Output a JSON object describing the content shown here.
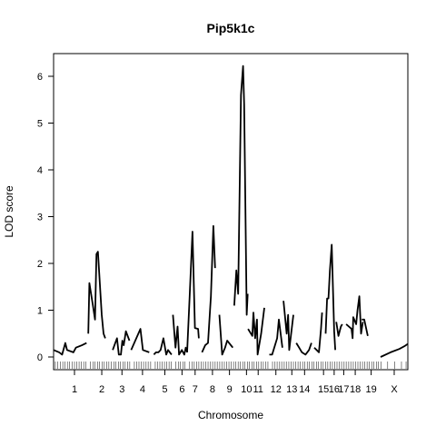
{
  "chart_data": {
    "type": "line",
    "title": "Pip5k1c",
    "xlabel": "Chromosome",
    "ylabel": "LOD score",
    "ylim": [
      -0.25,
      6.5
    ],
    "yticks": [
      0,
      1,
      2,
      3,
      4,
      5,
      6
    ],
    "xlim": [
      0,
      100
    ],
    "grid": false,
    "legend": "none",
    "line_color": "#000000",
    "chromosomes": [
      {
        "label": "1",
        "start": 0.0,
        "end": 11.8,
        "points": [
          [
            0.0,
            0.15
          ],
          [
            1.6,
            0.1
          ],
          [
            2.4,
            0.05
          ],
          [
            3.3,
            0.3
          ],
          [
            3.8,
            0.15
          ],
          [
            5.6,
            0.1
          ],
          [
            6.3,
            0.2
          ],
          [
            8.0,
            0.25
          ],
          [
            9.3,
            0.3
          ]
        ]
      },
      {
        "label": "2",
        "start": 9.8,
        "end": 17.4,
        "points": [
          [
            9.8,
            0.5
          ],
          [
            10.1,
            1.58
          ],
          [
            11.1,
            1.1
          ],
          [
            11.7,
            0.8
          ],
          [
            12.1,
            2.2
          ],
          [
            12.5,
            2.25
          ],
          [
            13.6,
            0.9
          ],
          [
            14.1,
            0.5
          ],
          [
            14.6,
            0.4
          ]
        ]
      },
      {
        "label": "3",
        "start": 16.7,
        "end": 21.9,
        "points": [
          [
            16.7,
            0.15
          ],
          [
            17.4,
            0.3
          ],
          [
            17.9,
            0.4
          ],
          [
            18.4,
            0.05
          ],
          [
            19.0,
            0.05
          ],
          [
            19.4,
            0.35
          ],
          [
            19.8,
            0.25
          ],
          [
            20.4,
            0.55
          ],
          [
            21.4,
            0.35
          ]
        ]
      },
      {
        "label": "4",
        "start": 21.9,
        "end": 28.3,
        "points": [
          [
            21.9,
            0.15
          ],
          [
            24.5,
            0.6
          ],
          [
            25.2,
            0.15
          ],
          [
            27.0,
            0.1
          ]
        ]
      },
      {
        "label": "5",
        "start": 28.3,
        "end": 34.5,
        "points": [
          [
            28.3,
            0.05
          ],
          [
            28.9,
            0.1
          ],
          [
            29.6,
            0.1
          ],
          [
            30.2,
            0.15
          ],
          [
            31.0,
            0.4
          ],
          [
            31.8,
            0.05
          ],
          [
            32.3,
            0.15
          ],
          [
            33.3,
            0.05
          ]
        ]
      },
      {
        "label": "6",
        "start": 33.7,
        "end": 38.8,
        "points": [
          [
            33.7,
            0.9
          ],
          [
            34.4,
            0.2
          ],
          [
            35.0,
            0.65
          ],
          [
            35.4,
            0.05
          ],
          [
            36.2,
            0.15
          ],
          [
            36.9,
            0.05
          ],
          [
            37.3,
            0.2
          ],
          [
            37.7,
            0.1
          ]
        ]
      },
      {
        "label": "7",
        "start": 37.7,
        "end": 42.2,
        "points": [
          [
            37.7,
            0.1
          ],
          [
            38.4,
            1.3
          ],
          [
            39.2,
            2.68
          ],
          [
            39.9,
            0.62
          ],
          [
            40.8,
            0.6
          ],
          [
            41.0,
            0.4
          ]
        ]
      },
      {
        "label": "8",
        "start": 41.9,
        "end": 47.8,
        "points": [
          [
            41.9,
            0.1
          ],
          [
            42.8,
            0.25
          ],
          [
            43.6,
            0.3
          ],
          [
            44.4,
            1.3
          ],
          [
            45.1,
            2.8
          ],
          [
            45.6,
            1.9
          ]
        ]
      },
      {
        "label": "9",
        "start": 46.8,
        "end": 52.5,
        "points": [
          [
            46.8,
            0.9
          ],
          [
            47.6,
            0.05
          ],
          [
            48.4,
            0.2
          ],
          [
            49.0,
            0.35
          ],
          [
            50.6,
            0.2
          ]
        ]
      },
      {
        "label": "10",
        "start": 51.0,
        "end": 57.9,
        "points": [
          [
            51.0,
            1.1
          ],
          [
            51.6,
            1.85
          ],
          [
            52.1,
            1.35
          ],
          [
            52.9,
            5.6
          ],
          [
            53.5,
            6.22
          ],
          [
            53.8,
            5.4
          ],
          [
            54.5,
            0.9
          ],
          [
            54.8,
            1.35
          ]
        ]
      },
      {
        "label": "11",
        "start": 54.9,
        "end": 60.6,
        "points": [
          [
            54.9,
            0.6
          ],
          [
            56.1,
            0.45
          ],
          [
            56.4,
            0.95
          ],
          [
            56.9,
            0.4
          ],
          [
            57.4,
            0.8
          ],
          [
            57.6,
            0.05
          ],
          [
            58.6,
            0.5
          ],
          [
            59.5,
            1.05
          ]
        ]
      },
      {
        "label": "12",
        "start": 60.9,
        "end": 64.6,
        "points": [
          [
            60.9,
            0.05
          ],
          [
            61.7,
            0.05
          ],
          [
            63.1,
            0.4
          ],
          [
            63.6,
            0.8
          ],
          [
            64.6,
            0.2
          ]
        ]
      },
      {
        "label": "13",
        "start": 64.9,
        "end": 69.6,
        "points": [
          [
            64.9,
            1.2
          ],
          [
            65.8,
            0.5
          ],
          [
            66.2,
            0.9
          ],
          [
            66.5,
            0.15
          ],
          [
            67.7,
            0.9
          ]
        ]
      },
      {
        "label": "14",
        "start": 68.5,
        "end": 73.2,
        "points": [
          [
            68.5,
            0.3
          ],
          [
            69.3,
            0.2
          ],
          [
            70.1,
            0.1
          ],
          [
            71.1,
            0.05
          ],
          [
            72.1,
            0.15
          ],
          [
            72.8,
            0.3
          ]
        ]
      },
      {
        "label": "15",
        "start": 73.6,
        "end": 78.8,
        "points": [
          [
            73.6,
            0.2
          ],
          [
            74.9,
            0.1
          ],
          [
            75.5,
            0.6
          ],
          [
            75.8,
            0.95
          ]
        ]
      },
      {
        "label": "16",
        "start": 76.8,
        "end": 81.6,
        "points": [
          [
            76.8,
            0.5
          ],
          [
            77.2,
            1.25
          ],
          [
            77.6,
            1.25
          ],
          [
            78.0,
            1.85
          ],
          [
            78.5,
            2.4
          ],
          [
            79.2,
            0.55
          ],
          [
            79.5,
            0.15
          ]
        ]
      },
      {
        "label": "17",
        "start": 79.8,
        "end": 84.0,
        "points": [
          [
            79.8,
            0.75
          ],
          [
            80.4,
            0.45
          ],
          [
            81.1,
            0.65
          ],
          [
            81.5,
            0.7
          ]
        ]
      },
      {
        "label": "18",
        "start": 82.6,
        "end": 87.7,
        "points": [
          [
            82.6,
            0.7
          ],
          [
            84.1,
            0.6
          ],
          [
            84.4,
            0.4
          ],
          [
            84.6,
            0.85
          ],
          [
            85.4,
            0.7
          ],
          [
            85.8,
            1.0
          ],
          [
            86.3,
            1.3
          ],
          [
            86.8,
            0.5
          ],
          [
            87.3,
            0.75
          ]
        ]
      },
      {
        "label": "19",
        "start": 87.0,
        "end": 92.3,
        "points": [
          [
            87.0,
            0.8
          ],
          [
            87.7,
            0.8
          ],
          [
            88.7,
            0.45
          ]
        ]
      },
      {
        "label": "X",
        "start": 92.3,
        "end": 100.0,
        "points": [
          [
            92.3,
            0.0
          ],
          [
            95.1,
            0.1
          ],
          [
            97.6,
            0.17
          ],
          [
            99.0,
            0.23
          ],
          [
            100.0,
            0.28
          ]
        ]
      }
    ],
    "marker_ticks": [
      0.5,
      1.2,
      1.9,
      2.6,
      3.2,
      3.9,
      4.5,
      5.2,
      5.9,
      6.5,
      7.2,
      7.8,
      8.5,
      9.1,
      10.4,
      11.1,
      11.7,
      12.4,
      13.0,
      13.7,
      14.3,
      15.0,
      15.6,
      16.3,
      17.0,
      17.6,
      18.3,
      18.9,
      19.6,
      20.2,
      20.9,
      21.5,
      22.8,
      23.5,
      24.1,
      24.8,
      25.4,
      26.1,
      26.7,
      27.4,
      28.7,
      29.3,
      30.0,
      30.6,
      31.3,
      31.9,
      32.6,
      33.2,
      34.5,
      35.2,
      35.8,
      36.5,
      37.1,
      38.4,
      39.1,
      39.7,
      40.4,
      41.0,
      41.7,
      42.3,
      43.0,
      43.6,
      44.3,
      44.9,
      45.6,
      46.2,
      46.9,
      47.5,
      48.2,
      48.8,
      49.5,
      50.1,
      50.8,
      51.4,
      52.1,
      52.7,
      53.4,
      54.0,
      54.7,
      55.3,
      56.0,
      56.6,
      57.3,
      57.9,
      58.6,
      59.2,
      59.9,
      60.5,
      61.8,
      62.5,
      63.1,
      63.8,
      64.4,
      65.1,
      65.7,
      66.4,
      67.0,
      67.7,
      68.3,
      69.0,
      69.6,
      70.3,
      70.9,
      71.6,
      72.2,
      72.9,
      73.5,
      74.2,
      74.8,
      75.5,
      76.1,
      76.8,
      77.4,
      78.1,
      78.7,
      79.4,
      80.0,
      80.7,
      81.3,
      82.0,
      82.6,
      83.3,
      83.9,
      84.6,
      85.2,
      85.9,
      86.5,
      87.2,
      87.8,
      88.5,
      89.1,
      89.8,
      90.4,
      91.1,
      91.7,
      92.4,
      94.3,
      96.3,
      98.2,
      99.5
    ]
  }
}
